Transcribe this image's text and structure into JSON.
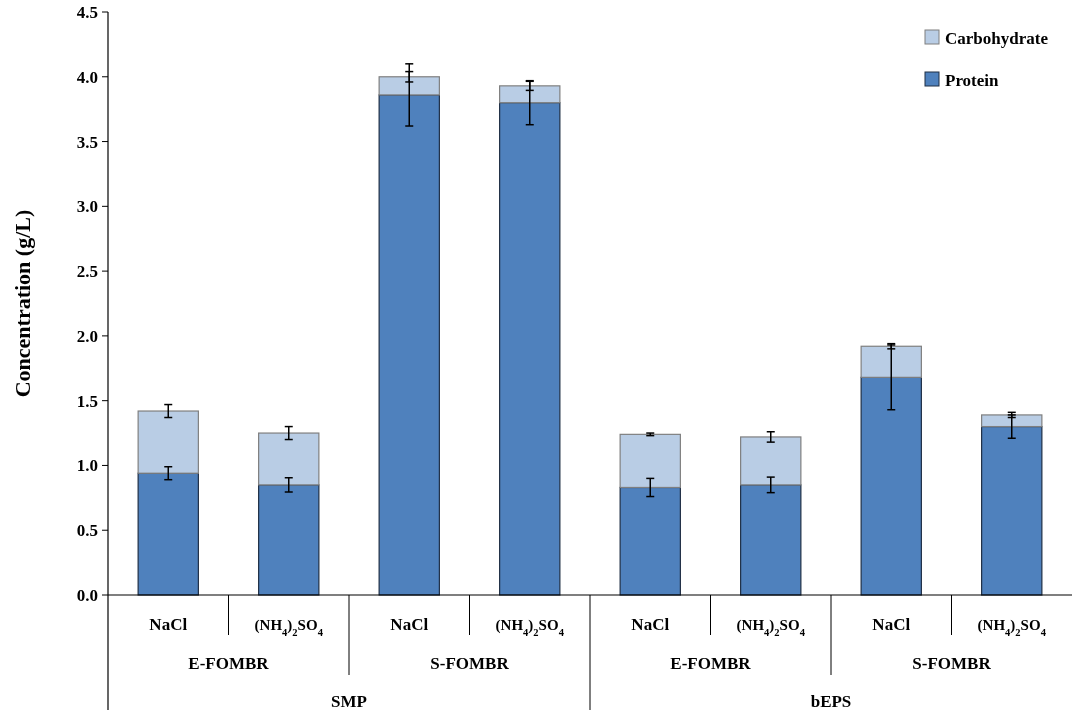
{
  "chart_data": {
    "type": "bar",
    "stacked": true,
    "ylabel": "Concentration (g/L)",
    "categories": [
      "NaCl",
      "(NH$_{4}$)$_{2}$SO$_{4}$",
      "NaCl",
      "(NH$_{4}$)$_{2}$SO$_{4}$",
      "NaCl",
      "(NH$_{4}$)$_{2}$SO$_{4}$",
      "NaCl",
      "(NH$_{4}$)$_{2}$SO$_{4}$"
    ],
    "annotations": [
      "E-FOMBR",
      "S-FOMBR",
      "E-FOMBR",
      "S-FOMBR",
      "SMP",
      "bEPS"
    ],
    "series": [
      {
        "name": "Protein",
        "color": "#4f81bd",
        "values": [
          0.94,
          0.85,
          3.86,
          3.8,
          0.83,
          0.85,
          1.68,
          1.3
        ],
        "errors": [
          0.05,
          0.055,
          0.24,
          0.17,
          0.07,
          0.06,
          0.25,
          0.09
        ]
      },
      {
        "name": "Carbohydrate",
        "color": "#b9cde5",
        "values": [
          0.48,
          0.4,
          0.14,
          0.13,
          0.41,
          0.37,
          0.24,
          0.09
        ],
        "errors": [
          0.05,
          0.05,
          0.04,
          0.035,
          0.01,
          0.04,
          0.02,
          0.02
        ]
      }
    ],
    "ylim": [
      0,
      4.5
    ],
    "yticks": [
      {
        "value": 0,
        "label": "0.0"
      },
      0.5,
      {
        "value": 1,
        "label": "1.0"
      },
      1.5,
      {
        "value": 2,
        "label": "2.0"
      },
      2.5,
      {
        "value": 3,
        "label": "3.0"
      },
      3.5,
      {
        "value": 4,
        "label": "4.0"
      },
      4.5
    ],
    "legend": "top right",
    "grid": false
  }
}
